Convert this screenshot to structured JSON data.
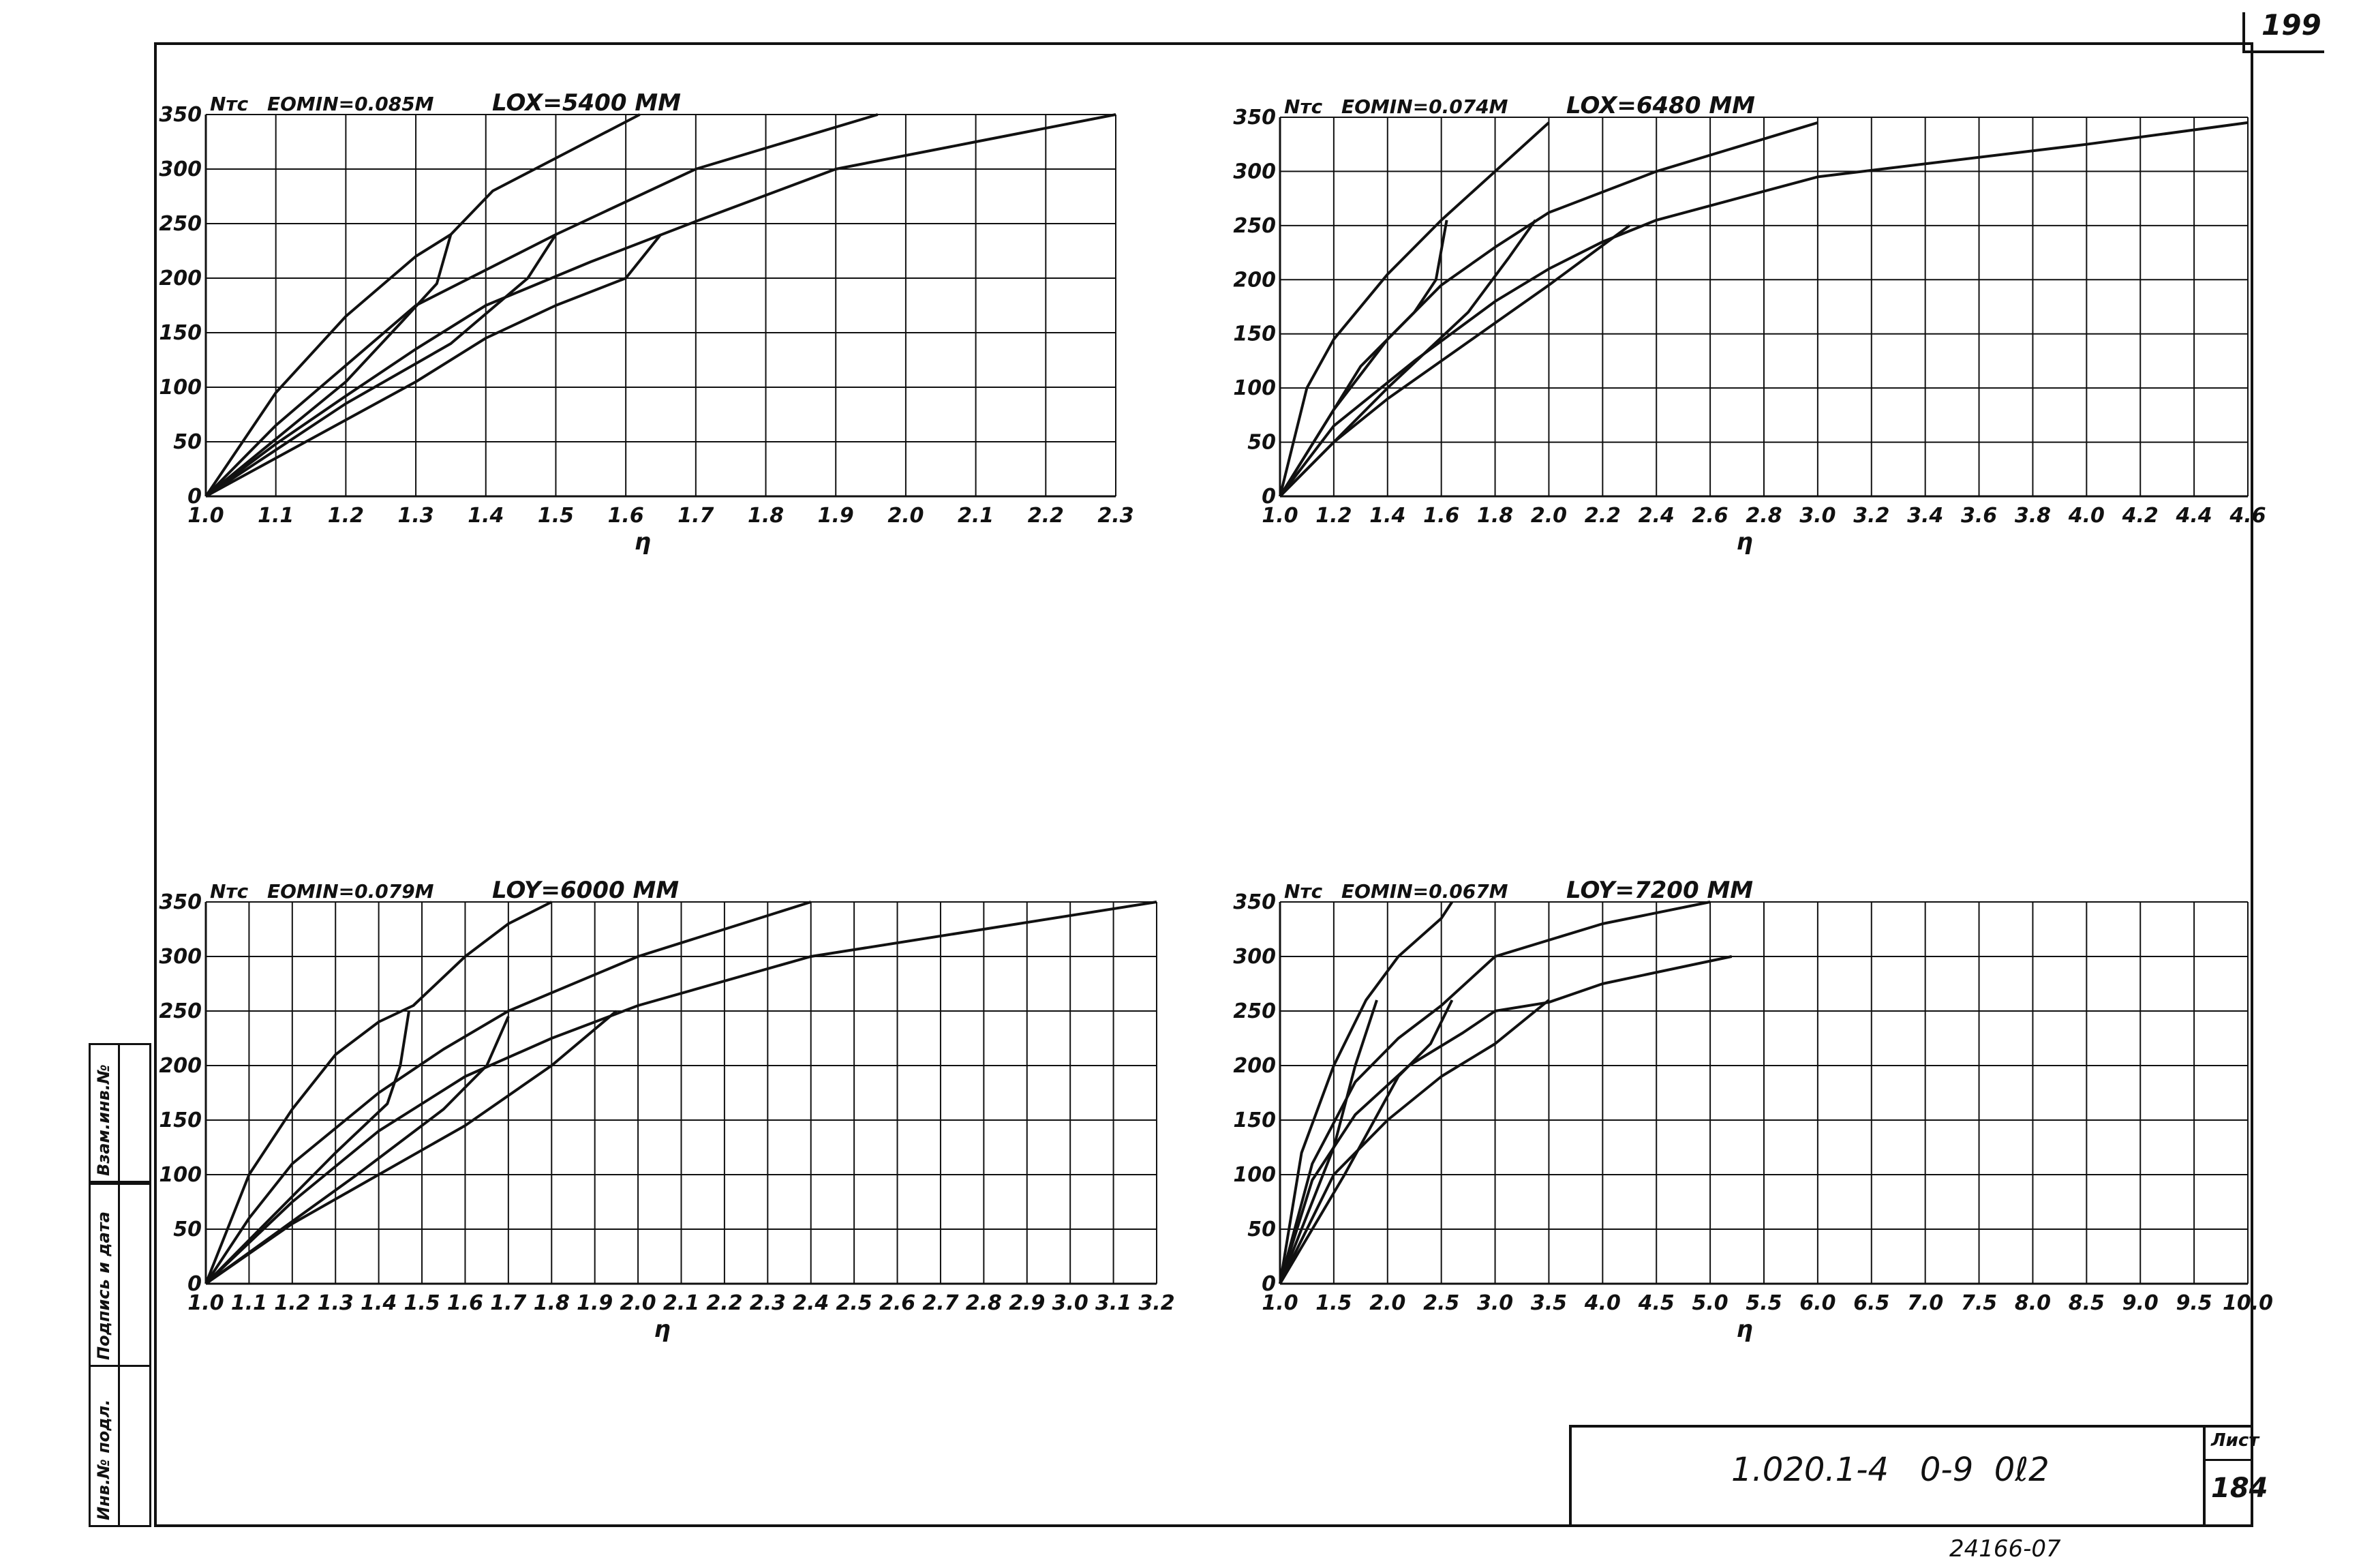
{
  "sheet": {
    "page_number": "199",
    "doc_code": "1.020.1-4   0-9  0ℓ2",
    "sheet_label": "Лист",
    "sheet_number": "184",
    "inventory_stamp": "24166-07",
    "side_labels": [
      "Инв.№ подл.",
      "Подпись и дата",
      "Взам.инв.№"
    ]
  },
  "chart_data": [
    {
      "type": "line",
      "y_unit": "Nтс",
      "e0min": "EOMIN=0.085M",
      "length": "LOX=5400 MM",
      "xlabel": "η",
      "xlim": [
        1.0,
        2.3
      ],
      "ylim": [
        0,
        350
      ],
      "x_ticks": [
        "1.0",
        "1.1",
        "1.2",
        "1.3",
        "1.4",
        "1.5",
        "1.6",
        "1.7",
        "1.8",
        "1.9",
        "2.0",
        "2.1",
        "2.2",
        "2.3"
      ],
      "y_ticks": [
        "0",
        "50",
        "100",
        "150",
        "200",
        "250",
        "300",
        "350"
      ],
      "grid": true,
      "series": [
        {
          "x": [
            1.0,
            1.1,
            1.2,
            1.3,
            1.35,
            1.41,
            1.5,
            1.62
          ],
          "y": [
            0,
            95,
            165,
            220,
            240,
            280,
            310,
            350
          ]
        },
        {
          "x": [
            1.0,
            1.1,
            1.2,
            1.3,
            1.5,
            1.7,
            1.96
          ],
          "y": [
            0,
            65,
            120,
            175,
            240,
            300,
            350
          ]
        },
        {
          "x": [
            1.0,
            1.1,
            1.2,
            1.3,
            1.4,
            1.55,
            1.7,
            1.9,
            2.1,
            2.3
          ],
          "y": [
            0,
            48,
            92,
            135,
            175,
            215,
            252,
            300,
            325,
            350
          ]
        },
        {
          "x": [
            1.0,
            1.1,
            1.2,
            1.3,
            1.4,
            1.5,
            1.6,
            1.65
          ],
          "y": [
            0,
            35,
            70,
            105,
            145,
            175,
            200,
            240
          ]
        },
        {
          "x": [
            1.0,
            1.2,
            1.28,
            1.33,
            1.35
          ],
          "y": [
            0,
            105,
            160,
            195,
            240
          ]
        },
        {
          "x": [
            1.0,
            1.2,
            1.35,
            1.46,
            1.5
          ],
          "y": [
            0,
            85,
            140,
            200,
            240
          ]
        }
      ]
    },
    {
      "type": "line",
      "y_unit": "Nтс",
      "e0min": "EOMIN=0.074M",
      "length": "LOX=6480 MM",
      "xlabel": "η",
      "xlim": [
        1.0,
        4.6
      ],
      "ylim": [
        0,
        350
      ],
      "x_ticks": [
        "1.0",
        "1.2",
        "1.4",
        "1.6",
        "1.8",
        "2.0",
        "2.2",
        "2.4",
        "2.6",
        "2.8",
        "3.0",
        "3.2",
        "3.4",
        "3.6",
        "3.8",
        "4.0",
        "4.2",
        "4.4",
        "4.6"
      ],
      "y_ticks": [
        "0",
        "50",
        "100",
        "150",
        "200",
        "250",
        "300",
        "350"
      ],
      "grid": true,
      "series": [
        {
          "x": [
            1.0,
            1.1,
            1.2,
            1.4,
            1.6,
            1.8,
            2.0
          ],
          "y": [
            0,
            100,
            145,
            205,
            255,
            300,
            345
          ]
        },
        {
          "x": [
            1.0,
            1.2,
            1.4,
            1.6,
            1.8,
            2.0,
            2.4,
            3.0
          ],
          "y": [
            0,
            80,
            145,
            195,
            230,
            262,
            300,
            345
          ]
        },
        {
          "x": [
            1.0,
            1.2,
            1.5,
            1.8,
            2.0,
            2.2,
            2.4,
            3.0,
            4.0,
            4.6
          ],
          "y": [
            0,
            65,
            125,
            180,
            210,
            235,
            255,
            295,
            325,
            345
          ]
        },
        {
          "x": [
            1.0,
            1.2,
            1.4,
            1.6,
            1.8,
            2.0,
            2.3
          ],
          "y": [
            0,
            50,
            90,
            125,
            160,
            195,
            250
          ]
        },
        {
          "x": [
            1.0,
            1.3,
            1.5,
            1.58,
            1.62
          ],
          "y": [
            0,
            120,
            170,
            200,
            255
          ]
        },
        {
          "x": [
            1.0,
            1.4,
            1.7,
            1.85,
            1.95
          ],
          "y": [
            0,
            100,
            170,
            220,
            255
          ]
        }
      ]
    },
    {
      "type": "line",
      "y_unit": "Nтс",
      "e0min": "EOMIN=0.079M",
      "length": "LOY=6000 MM",
      "xlabel": "η",
      "xlim": [
        1.0,
        3.2
      ],
      "ylim": [
        0,
        350
      ],
      "x_ticks": [
        "1.0",
        "1.1",
        "1.2",
        "1.3",
        "1.4",
        "1.5",
        "1.6",
        "1.7",
        "1.8",
        "1.9",
        "2.0",
        "2.1",
        "2.2",
        "2.3",
        "2.4",
        "2.5",
        "2.6",
        "2.7",
        "2.8",
        "2.9",
        "3.0",
        "3.1",
        "3.2"
      ],
      "y_ticks": [
        "0",
        "50",
        "100",
        "150",
        "200",
        "250",
        "300",
        "350"
      ],
      "grid": true,
      "series": [
        {
          "x": [
            1.0,
            1.1,
            1.2,
            1.3,
            1.4,
            1.48,
            1.6,
            1.7,
            1.8
          ],
          "y": [
            0,
            100,
            160,
            210,
            240,
            255,
            300,
            330,
            350
          ]
        },
        {
          "x": [
            1.0,
            1.1,
            1.2,
            1.4,
            1.55,
            1.7,
            2.0,
            2.4
          ],
          "y": [
            0,
            60,
            110,
            175,
            215,
            250,
            300,
            350
          ]
        },
        {
          "x": [
            1.0,
            1.2,
            1.4,
            1.6,
            1.8,
            2.0,
            2.4,
            2.8,
            3.2
          ],
          "y": [
            0,
            75,
            140,
            190,
            225,
            255,
            300,
            325,
            350
          ]
        },
        {
          "x": [
            1.0,
            1.2,
            1.4,
            1.6,
            1.8,
            1.95
          ],
          "y": [
            0,
            55,
            100,
            145,
            200,
            250
          ]
        },
        {
          "x": [
            1.0,
            1.3,
            1.42,
            1.45,
            1.47
          ],
          "y": [
            0,
            120,
            165,
            200,
            250
          ]
        },
        {
          "x": [
            1.0,
            1.35,
            1.55,
            1.65,
            1.7
          ],
          "y": [
            0,
            100,
            160,
            200,
            245
          ]
        }
      ]
    },
    {
      "type": "line",
      "y_unit": "Nтс",
      "e0min": "EOMIN=0.067M",
      "length": "LOY=7200 MM",
      "xlabel": "η",
      "xlim": [
        1.0,
        10.0
      ],
      "ylim": [
        0,
        350
      ],
      "x_ticks": [
        "1.0",
        "1.5",
        "2.0",
        "2.5",
        "3.0",
        "3.5",
        "4.0",
        "4.5",
        "5.0",
        "5.5",
        "6.0",
        "6.5",
        "7.0",
        "7.5",
        "8.0",
        "8.5",
        "9.0",
        "9.5",
        "10.0"
      ],
      "y_ticks": [
        "0",
        "50",
        "100",
        "150",
        "200",
        "250",
        "300",
        "350"
      ],
      "grid": true,
      "series": [
        {
          "x": [
            1.0,
            1.2,
            1.5,
            1.8,
            2.1,
            2.5,
            2.6
          ],
          "y": [
            0,
            120,
            200,
            260,
            300,
            335,
            350
          ]
        },
        {
          "x": [
            1.0,
            1.3,
            1.7,
            2.1,
            2.5,
            3.0,
            4.0,
            5.0
          ],
          "y": [
            0,
            110,
            185,
            225,
            255,
            300,
            330,
            350
          ]
        },
        {
          "x": [
            1.0,
            1.3,
            1.7,
            2.2,
            2.7,
            3.0,
            3.5,
            4.0,
            5.2
          ],
          "y": [
            0,
            95,
            155,
            200,
            230,
            250,
            258,
            275,
            300
          ]
        },
        {
          "x": [
            1.0,
            1.5,
            2.0,
            2.5,
            3.0,
            3.5
          ],
          "y": [
            0,
            100,
            150,
            190,
            220,
            260
          ]
        },
        {
          "x": [
            1.0,
            1.5,
            1.7,
            1.9
          ],
          "y": [
            0,
            125,
            200,
            260
          ]
        },
        {
          "x": [
            1.0,
            1.6,
            2.1,
            2.4,
            2.6
          ],
          "y": [
            0,
            100,
            190,
            220,
            260
          ]
        }
      ]
    }
  ]
}
